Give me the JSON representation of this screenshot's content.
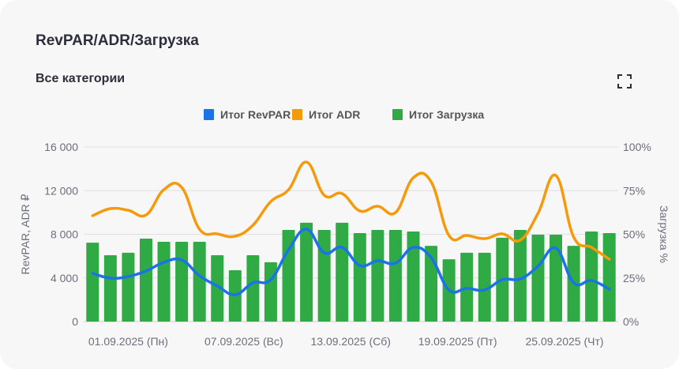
{
  "header": {
    "title": "RevPAR/ADR/Загрузка",
    "subtitle": "Все категории",
    "expand_icon": "fullscreen-icon"
  },
  "colors": {
    "revpar": "#1a73e8",
    "adr": "#f59a0a",
    "occupancy": "#2faa44",
    "grid": "#e0e0e0"
  },
  "chart_data": {
    "type": "bar+line",
    "legend": {
      "placement": "top",
      "entries": [
        "Итог RevPAR",
        "Итог ADR",
        "Итог Загрузка"
      ]
    },
    "x_tick_labels": [
      {
        "index": 2,
        "label": "01.09.2025 (Пн)"
      },
      {
        "index": 8,
        "label": "07.09.2025 (Вс)"
      },
      {
        "index": 14,
        "label": "13.09.2025 (Сб)"
      },
      {
        "index": 20,
        "label": "19.09.2025 (Пт)"
      },
      {
        "index": 26,
        "label": "25.09.2025 (Чт)"
      }
    ],
    "y_left": {
      "label": "RevPAR, ADR ₽",
      "range": [
        0,
        16000
      ],
      "ticks": [
        "0",
        "4 000",
        "8 000",
        "12 000",
        "16 000"
      ]
    },
    "y_right": {
      "label": "Загрузка %",
      "range": [
        0,
        100
      ],
      "ticks": [
        "0%",
        "25%",
        "50%",
        "75%",
        "100%"
      ]
    },
    "grid": true,
    "series": [
      {
        "name": "Итог RevPAR",
        "type": "line",
        "axis": "left",
        "smooth": true,
        "values": [
          4420,
          3980,
          4130,
          4630,
          5430,
          5650,
          4200,
          3260,
          2460,
          3550,
          3840,
          6590,
          8470,
          6300,
          6800,
          5140,
          5570,
          5360,
          6800,
          5860,
          2900,
          3040,
          2900,
          3840,
          3910,
          5070,
          6730,
          3550,
          3760,
          2970
        ]
      },
      {
        "name": "Итог ADR",
        "type": "line",
        "axis": "left",
        "smooth": true,
        "values": [
          9700,
          10350,
          10200,
          9770,
          12090,
          12300,
          8470,
          8040,
          7820,
          8830,
          11000,
          12090,
          14620,
          11580,
          11730,
          10140,
          10570,
          9990,
          13180,
          12810,
          7890,
          7890,
          7600,
          8040,
          7460,
          9920,
          13390,
          7750,
          6800,
          5720
        ]
      },
      {
        "name": "Итог Загрузка",
        "type": "bar",
        "axis": "right",
        "values": [
          45.2,
          38,
          39.4,
          47.5,
          45.7,
          45.7,
          45.7,
          38,
          29.4,
          38,
          34,
          52.5,
          56.6,
          52.5,
          56.6,
          50.7,
          52.5,
          52.5,
          51.6,
          43.4,
          35.7,
          39.4,
          39.4,
          48,
          52.5,
          49.8,
          49.8,
          43.4,
          51.6,
          50.7
        ]
      }
    ]
  }
}
